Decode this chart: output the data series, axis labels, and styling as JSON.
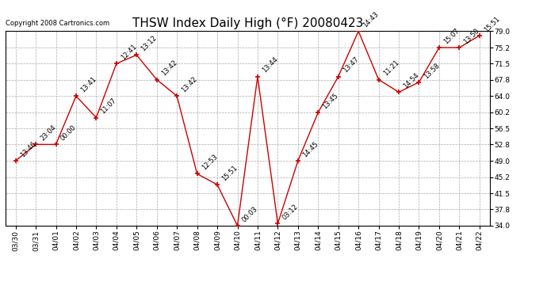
{
  "title": "THSW Index Daily High (°F) 20080423",
  "copyright": "Copyright 2008 Cartronics.com",
  "x_labels": [
    "03/30",
    "03/31",
    "04/01",
    "04/02",
    "04/03",
    "04/04",
    "04/05",
    "04/06",
    "04/07",
    "04/08",
    "04/09",
    "04/10",
    "04/11",
    "04/12",
    "04/13",
    "04/14",
    "04/15",
    "04/16",
    "04/17",
    "04/18",
    "04/19",
    "04/20",
    "04/21",
    "04/22"
  ],
  "y_values": [
    49.0,
    52.8,
    52.8,
    64.0,
    59.0,
    71.5,
    73.5,
    67.8,
    64.0,
    46.0,
    43.5,
    34.0,
    68.5,
    34.5,
    49.0,
    60.2,
    68.5,
    79.0,
    67.8,
    64.9,
    67.2,
    75.2,
    75.2,
    78.0
  ],
  "time_labels": [
    "13:46",
    "23:04",
    "00:00",
    "13:41",
    "11:07",
    "12:41",
    "13:12",
    "13:42",
    "13:42",
    "12:53",
    "15:51",
    "00:03",
    "13:44",
    "03:12",
    "14:45",
    "13:45",
    "13:47",
    "14:43",
    "11:21",
    "14:54",
    "13:58",
    "15:07",
    "13:50",
    "15:51"
  ],
  "ylim": [
    34.0,
    79.0
  ],
  "yticks": [
    34.0,
    37.8,
    41.5,
    45.2,
    49.0,
    52.8,
    56.5,
    60.2,
    64.0,
    67.8,
    71.5,
    75.2,
    79.0
  ],
  "ytick_labels": [
    "34.0",
    "37.8",
    "41.5",
    "45.2",
    "49.0",
    "52.8",
    "56.5",
    "60.2",
    "64.0",
    "67.8",
    "71.5",
    "75.2",
    "79.0"
  ],
  "line_color": "#cc0000",
  "marker_color": "#cc0000",
  "bg_color": "#ffffff",
  "grid_color": "#aaaaaa",
  "title_fontsize": 11,
  "label_fontsize": 6.5,
  "annotation_fontsize": 6.0,
  "copyright_fontsize": 6.0
}
